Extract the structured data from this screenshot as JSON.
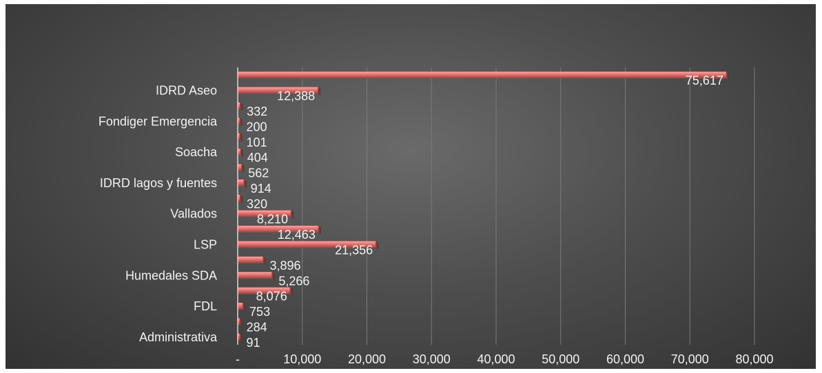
{
  "chart_data": {
    "type": "bar",
    "orientation": "horizontal",
    "title": "",
    "xlabel": "",
    "ylabel": "",
    "xlim": [
      0,
      80000
    ],
    "grid": true,
    "legend": "none",
    "bar_color": "#e0706e",
    "x_ticks": [
      "-",
      "10,000",
      "20,000",
      "30,000",
      "40,000",
      "50,000",
      "60,000",
      "70,000",
      "80,000"
    ],
    "x_tick_values": [
      0,
      10000,
      20000,
      30000,
      40000,
      50000,
      60000,
      70000,
      80000
    ],
    "categories": [
      "",
      "IDRD Aseo",
      "",
      "Fondiger Emergencia",
      "",
      "Soacha",
      "",
      "IDRD lagos y fuentes",
      "",
      "Vallados",
      "",
      "LSP",
      "",
      "Humedales SDA",
      "",
      "FDL",
      "",
      "Administrativa"
    ],
    "values": [
      75617,
      12388,
      332,
      200,
      101,
      404,
      562,
      914,
      320,
      8210,
      12463,
      21356,
      3896,
      5266,
      8076,
      753,
      284,
      91
    ],
    "value_labels": [
      "75,617",
      "12,388",
      "332",
      "200",
      "101",
      "404",
      "562",
      "914",
      "320",
      "8,210",
      "12,463",
      "21,356",
      "3,896",
      "5,266",
      "8,076",
      "753",
      "284",
      "91"
    ]
  }
}
